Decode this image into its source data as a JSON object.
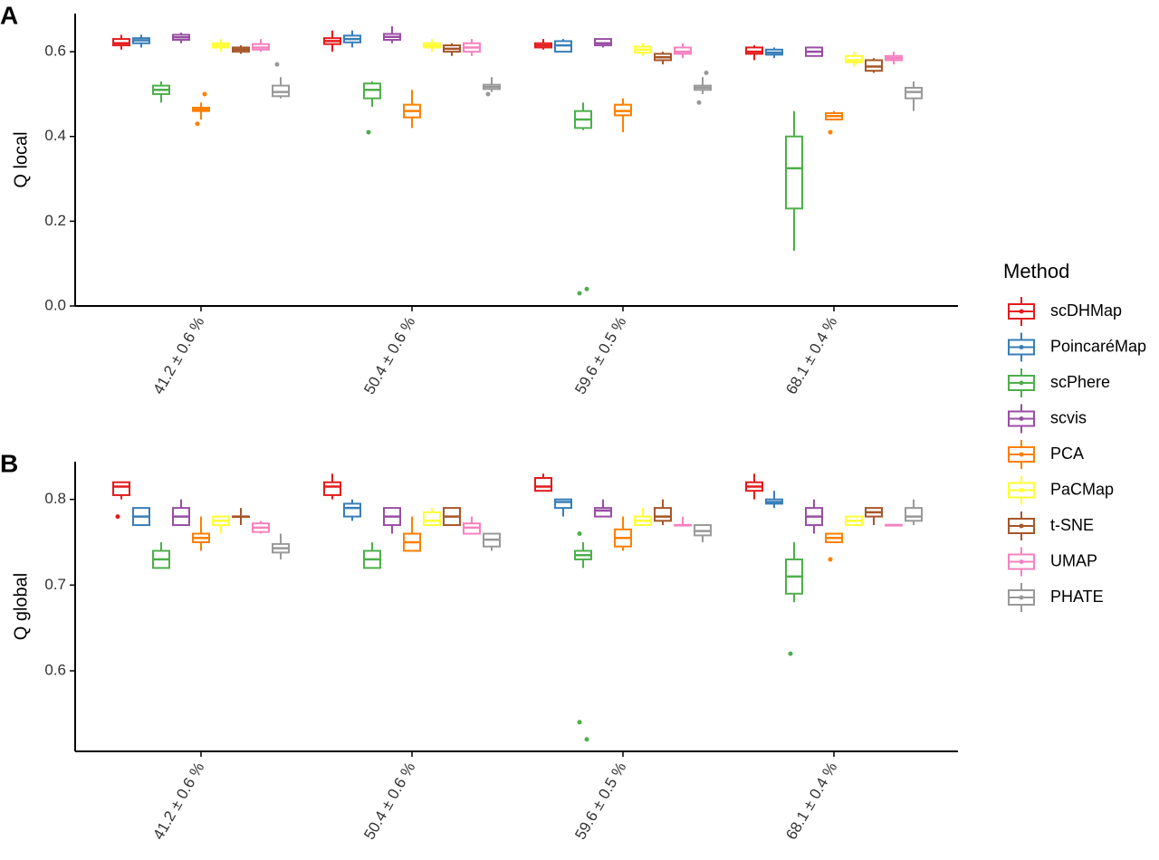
{
  "legend": {
    "title": "Method",
    "names": [
      "scDHMap",
      "PoincaréMap",
      "scPhere",
      "scvis",
      "PCA",
      "PaCMap",
      "t-SNE",
      "UMAP",
      "PHATE"
    ],
    "colors": [
      "#e41a1c",
      "#377eb8",
      "#4daf4a",
      "#984ea3",
      "#ff7f00",
      "#ffff33",
      "#a65628",
      "#f781bf",
      "#999999"
    ]
  },
  "chart_data": [
    {
      "type": "box",
      "panel": "A",
      "y_label": "Q local",
      "categories": [
        "41.2 ± 0.6 %",
        "50.4 ± 0.6 %",
        "59.6 ± 0.5 %",
        "68.1 ± 0.4 %"
      ],
      "ylim": [
        0,
        0.69
      ],
      "yticks": [
        {
          "value": 0,
          "label": "0.0"
        },
        0.2,
        0.4,
        0.6
      ],
      "series": [
        {
          "values": [
            [
              0.605,
              0.615,
              0.62,
              0.63,
              0.64
            ],
            [
              0.6,
              0.618,
              0.625,
              0.632,
              0.65
            ],
            [
              0.605,
              0.61,
              0.615,
              0.62,
              0.63
            ],
            [
              0.58,
              0.595,
              0.6,
              0.61,
              0.615
            ]
          ],
          "outliers": [
            [],
            [],
            [],
            []
          ]
        },
        {
          "values": [
            [
              0.61,
              0.62,
              0.627,
              0.632,
              0.64
            ],
            [
              0.61,
              0.622,
              0.63,
              0.638,
              0.65
            ],
            [
              0.6,
              0.6,
              0.615,
              0.625,
              0.63
            ],
            [
              0.585,
              0.593,
              0.598,
              0.605,
              0.61
            ]
          ],
          "outliers": [
            [],
            [],
            [],
            []
          ]
        },
        {
          "values": [
            [
              0.48,
              0.5,
              0.51,
              0.52,
              0.53
            ],
            [
              0.47,
              0.49,
              0.51,
              0.525,
              0.53
            ],
            [
              0.415,
              0.42,
              0.44,
              0.46,
              0.48
            ],
            [
              0.13,
              0.23,
              0.325,
              0.4,
              0.46
            ]
          ],
          "outliers": [
            [],
            [
              0.41
            ],
            [
              0.03,
              0.04
            ],
            []
          ]
        },
        {
          "values": [
            [
              0.62,
              0.628,
              0.634,
              0.64,
              0.645
            ],
            [
              0.62,
              0.628,
              0.635,
              0.642,
              0.66
            ],
            [
              0.61,
              0.615,
              0.62,
              0.63,
              0.63
            ],
            [
              0.59,
              0.59,
              0.6,
              0.61,
              0.61
            ]
          ],
          "outliers": [
            [],
            [],
            [],
            []
          ]
        },
        {
          "values": [
            [
              0.44,
              0.46,
              0.464,
              0.468,
              0.48
            ],
            [
              0.42,
              0.445,
              0.46,
              0.475,
              0.51
            ],
            [
              0.41,
              0.45,
              0.46,
              0.475,
              0.49
            ],
            [
              0.44,
              0.44,
              0.448,
              0.455,
              0.46
            ]
          ],
          "outliers": [
            [
              0.43,
              0.5
            ],
            [],
            [],
            [
              0.41
            ]
          ]
        },
        {
          "values": [
            [
              0.6,
              0.61,
              0.615,
              0.62,
              0.63
            ],
            [
              0.6,
              0.61,
              0.615,
              0.62,
              0.63
            ],
            [
              0.59,
              0.598,
              0.605,
              0.612,
              0.62
            ],
            [
              0.565,
              0.575,
              0.58,
              0.59,
              0.6
            ]
          ],
          "outliers": [
            [],
            [],
            [],
            []
          ]
        },
        {
          "values": [
            [
              0.595,
              0.6,
              0.605,
              0.61,
              0.615
            ],
            [
              0.59,
              0.6,
              0.607,
              0.615,
              0.62
            ],
            [
              0.57,
              0.58,
              0.587,
              0.595,
              0.6
            ],
            [
              0.55,
              0.555,
              0.565,
              0.58,
              0.585
            ]
          ],
          "outliers": [
            [],
            [],
            [],
            []
          ]
        },
        {
          "values": [
            [
              0.6,
              0.605,
              0.61,
              0.618,
              0.63
            ],
            [
              0.59,
              0.6,
              0.61,
              0.62,
              0.63
            ],
            [
              0.585,
              0.595,
              0.6,
              0.61,
              0.62
            ],
            [
              0.57,
              0.58,
              0.585,
              0.59,
              0.6
            ]
          ],
          "outliers": [
            [],
            [],
            [],
            []
          ]
        },
        {
          "values": [
            [
              0.49,
              0.495,
              0.505,
              0.52,
              0.54
            ],
            [
              0.505,
              0.512,
              0.517,
              0.522,
              0.54
            ],
            [
              0.5,
              0.51,
              0.515,
              0.52,
              0.54
            ],
            [
              0.46,
              0.49,
              0.505,
              0.515,
              0.53
            ]
          ],
          "outliers": [
            [
              0.57
            ],
            [
              0.5
            ],
            [
              0.48,
              0.55
            ],
            []
          ]
        }
      ]
    },
    {
      "type": "box",
      "panel": "B",
      "y_label": "Q global",
      "categories": [
        "41.2 ± 0.6 %",
        "50.4 ± 0.6 %",
        "59.6 ± 0.5 %",
        "68.1 ± 0.4 %"
      ],
      "ylim": [
        0.506,
        0.844
      ],
      "yticks": [
        0.6,
        0.7,
        0.8
      ],
      "series": [
        {
          "values": [
            [
              0.8,
              0.805,
              0.815,
              0.82,
              0.82
            ],
            [
              0.8,
              0.805,
              0.815,
              0.82,
              0.83
            ],
            [
              0.81,
              0.81,
              0.815,
              0.825,
              0.83
            ],
            [
              0.8,
              0.81,
              0.815,
              0.82,
              0.83
            ]
          ],
          "outliers": [
            [
              0.78
            ],
            [],
            [],
            []
          ]
        },
        {
          "values": [
            [
              0.77,
              0.77,
              0.78,
              0.79,
              0.79
            ],
            [
              0.775,
              0.78,
              0.79,
              0.795,
              0.8
            ],
            [
              0.78,
              0.79,
              0.797,
              0.8,
              0.8
            ],
            [
              0.79,
              0.795,
              0.797,
              0.8,
              0.81
            ]
          ],
          "outliers": [
            [],
            [],
            [],
            []
          ]
        },
        {
          "values": [
            [
              0.72,
              0.72,
              0.73,
              0.74,
              0.75
            ],
            [
              0.72,
              0.72,
              0.73,
              0.74,
              0.75
            ],
            [
              0.72,
              0.73,
              0.735,
              0.74,
              0.75
            ],
            [
              0.68,
              0.69,
              0.71,
              0.73,
              0.75
            ]
          ],
          "outliers": [
            [],
            [],
            [
              0.54,
              0.52,
              0.76
            ],
            [
              0.62
            ]
          ]
        },
        {
          "values": [
            [
              0.77,
              0.77,
              0.78,
              0.79,
              0.8
            ],
            [
              0.76,
              0.77,
              0.78,
              0.79,
              0.79
            ],
            [
              0.78,
              0.78,
              0.787,
              0.79,
              0.8
            ],
            [
              0.76,
              0.77,
              0.78,
              0.79,
              0.8
            ]
          ],
          "outliers": [
            [],
            [],
            [],
            []
          ]
        },
        {
          "values": [
            [
              0.74,
              0.75,
              0.755,
              0.76,
              0.78
            ],
            [
              0.74,
              0.74,
              0.75,
              0.76,
              0.78
            ],
            [
              0.74,
              0.745,
              0.755,
              0.765,
              0.78
            ],
            [
              0.75,
              0.75,
              0.755,
              0.76,
              0.76
            ]
          ],
          "outliers": [
            [],
            [],
            [],
            [
              0.73
            ]
          ]
        },
        {
          "values": [
            [
              0.76,
              0.77,
              0.775,
              0.78,
              0.78
            ],
            [
              0.77,
              0.77,
              0.775,
              0.785,
              0.79
            ],
            [
              0.77,
              0.77,
              0.775,
              0.78,
              0.79
            ],
            [
              0.77,
              0.77,
              0.775,
              0.78,
              0.78
            ]
          ],
          "outliers": [
            [],
            [],
            [],
            []
          ]
        },
        {
          "values": [
            [
              0.77,
              0.78,
              0.78,
              0.78,
              0.79
            ],
            [
              0.77,
              0.77,
              0.78,
              0.79,
              0.79
            ],
            [
              0.77,
              0.775,
              0.78,
              0.79,
              0.8
            ],
            [
              0.77,
              0.78,
              0.785,
              0.79,
              0.79
            ]
          ],
          "outliers": [
            [],
            [],
            [],
            []
          ]
        },
        {
          "values": [
            [
              0.76,
              0.762,
              0.767,
              0.772,
              0.775
            ],
            [
              0.76,
              0.76,
              0.767,
              0.772,
              0.78
            ],
            [
              0.77,
              0.77,
              0.77,
              0.77,
              0.78
            ],
            [
              0.77,
              0.77,
              0.77,
              0.77,
              0.77
            ]
          ],
          "outliers": [
            [],
            [],
            [],
            []
          ]
        },
        {
          "values": [
            [
              0.73,
              0.738,
              0.743,
              0.748,
              0.76
            ],
            [
              0.74,
              0.745,
              0.753,
              0.76,
              0.76
            ],
            [
              0.75,
              0.758,
              0.763,
              0.77,
              0.77
            ],
            [
              0.77,
              0.775,
              0.78,
              0.79,
              0.8
            ]
          ],
          "outliers": [
            [],
            [],
            [],
            []
          ]
        }
      ]
    }
  ]
}
